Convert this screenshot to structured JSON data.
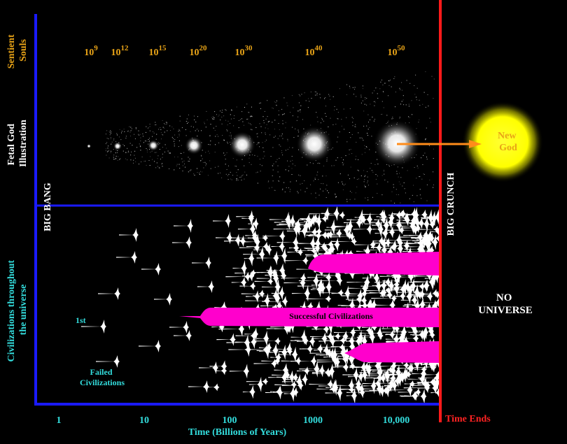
{
  "rows": {
    "sentient": "Sentient\nSouls",
    "fetal": "Fetal God\nIllustration",
    "civilizations": "Civilizations throughout\nthe universe"
  },
  "soul_counts": [
    {
      "base": "10",
      "exp": "9"
    },
    {
      "base": "10",
      "exp": "12"
    },
    {
      "base": "10",
      "exp": "15"
    },
    {
      "base": "10",
      "exp": "20"
    },
    {
      "base": "10",
      "exp": "30"
    },
    {
      "base": "10",
      "exp": "40"
    },
    {
      "base": "10",
      "exp": "50"
    }
  ],
  "labels": {
    "big_bang": "BIG BANG",
    "big_crunch": "BIG CRUNCH",
    "new_god": "New\nGod",
    "no_universe": "NO\nUNIVERSE",
    "first": "1st",
    "failed": "Failed\nCivilizations",
    "successful": "Successful Civilizations",
    "time_ends": "Time Ends"
  },
  "x_axis": {
    "label": "Time (Billions of Years)",
    "ticks": [
      "1",
      "10",
      "100",
      "1000",
      "10,000"
    ]
  },
  "colors": {
    "background": "#000000",
    "axis": "#1a1aff",
    "end_line": "#ff1a1a",
    "gold": "#e8a317",
    "cyan": "#33dddd",
    "magenta": "#ff00cc",
    "sun": "#ffff00",
    "arrow": "#ff8c1a",
    "white": "#ffffff"
  }
}
